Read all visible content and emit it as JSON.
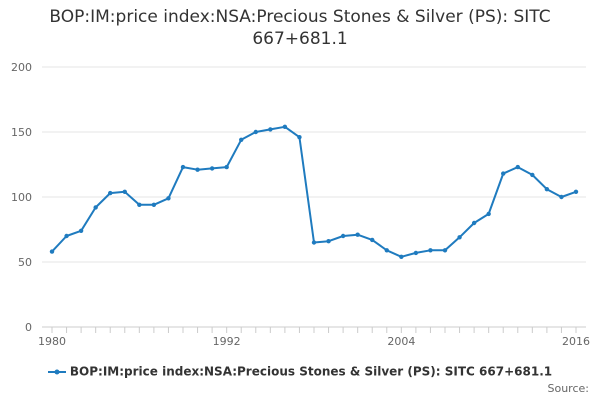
{
  "chart_data": {
    "type": "line",
    "title": "BOP:IM:price index:NSA:Precious Stones & Silver (PS): SITC 667+681.1",
    "xlabel": "",
    "ylabel": "",
    "xlim": [
      1980,
      2016
    ],
    "ylim": [
      0,
      200
    ],
    "y_ticks": [
      0,
      50,
      100,
      150,
      200
    ],
    "y_tick_labels": [
      "0",
      "50",
      "100",
      "150",
      "200"
    ],
    "x_ticks": [
      1980,
      1992,
      2004,
      2016
    ],
    "x_tick_labels": [
      "1980",
      "1992",
      "2004",
      "2016"
    ],
    "grid": "horizontal",
    "legend_position": "bottom",
    "color": "#1f7bbf",
    "x": [
      1980,
      1981,
      1982,
      1983,
      1984,
      1985,
      1986,
      1987,
      1988,
      1989,
      1990,
      1991,
      1992,
      1993,
      1994,
      1995,
      1996,
      1997,
      1998,
      1999,
      2000,
      2001,
      2002,
      2003,
      2004,
      2005,
      2006,
      2007,
      2008,
      2009,
      2010,
      2011,
      2012,
      2013,
      2014,
      2015,
      2016
    ],
    "series": [
      {
        "name": "BOP:IM:price index:NSA:Precious Stones & Silver (PS): SITC 667+681.1",
        "values": [
          58,
          70,
          74,
          92,
          103,
          104,
          94,
          94,
          99,
          123,
          121,
          122,
          123,
          144,
          150,
          152,
          154,
          146,
          65,
          66,
          70,
          71,
          67,
          59,
          54,
          57,
          59,
          59,
          69,
          80,
          87,
          118,
          123,
          117,
          106,
          100,
          104
        ]
      }
    ]
  },
  "source_label": "Source:"
}
